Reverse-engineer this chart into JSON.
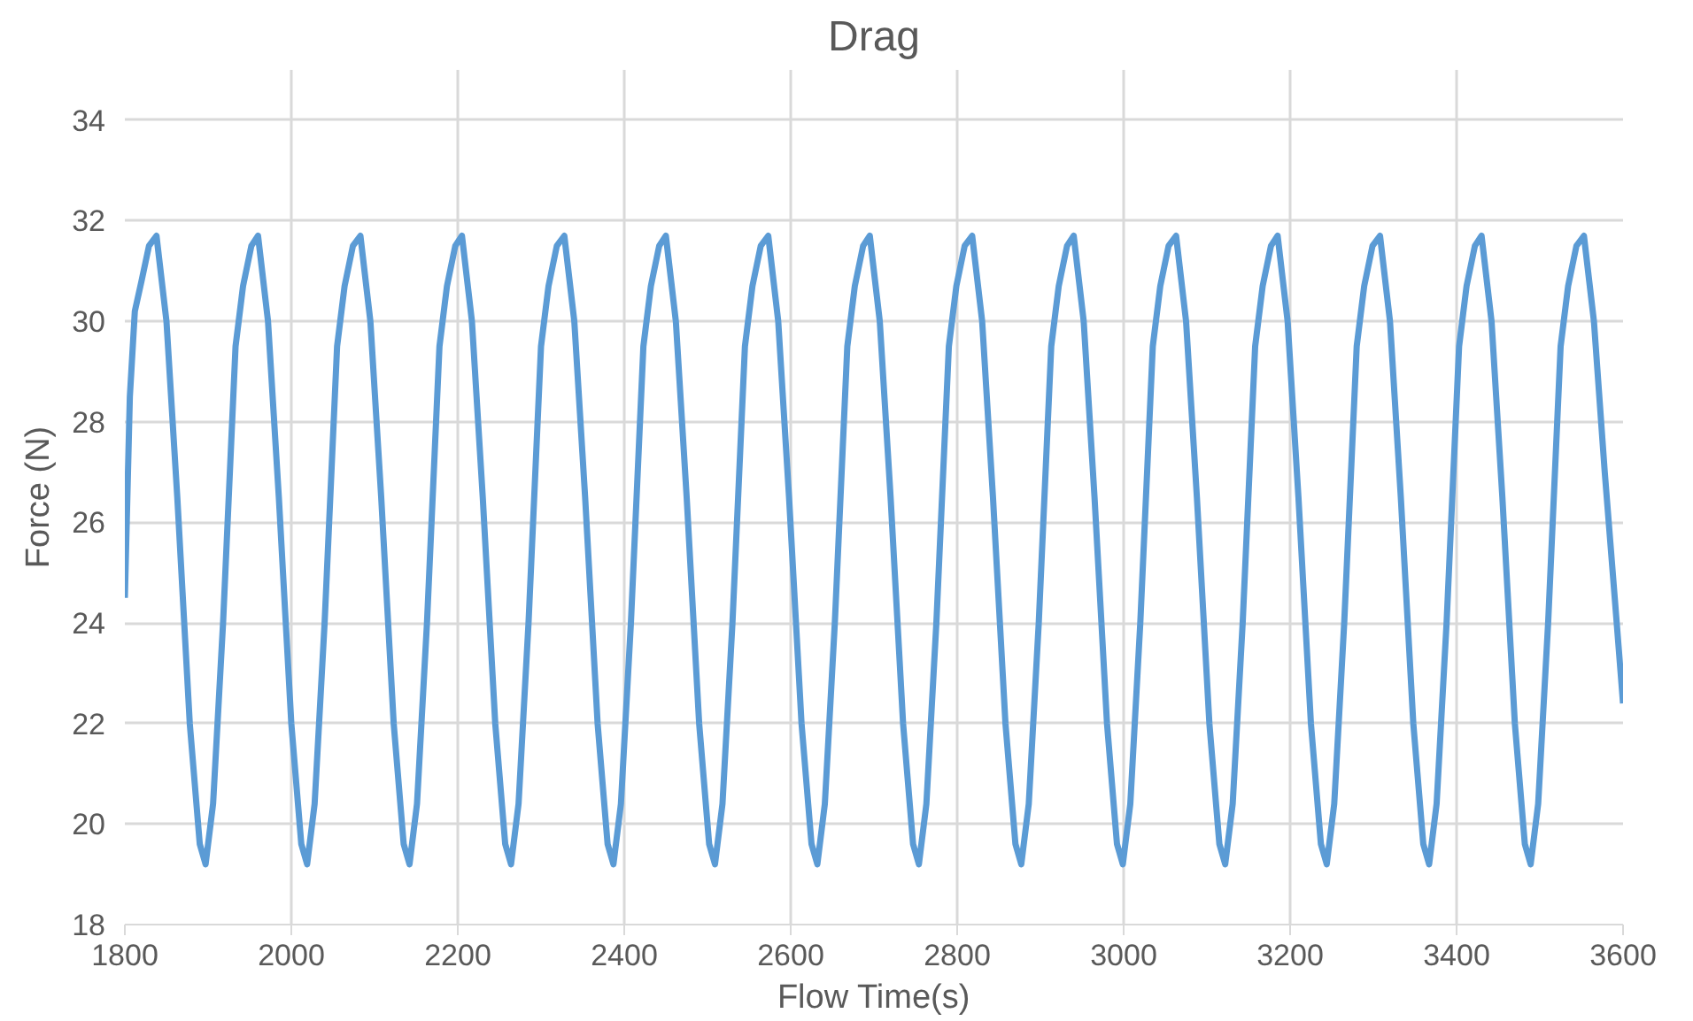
{
  "chart_data": {
    "type": "line",
    "title": "Drag",
    "xlabel": "Flow Time(s)",
    "ylabel": "Force (N)",
    "xlim": [
      1800,
      3600
    ],
    "xticks": [
      1800,
      2000,
      2200,
      2400,
      2600,
      2800,
      3000,
      3200,
      3400,
      3600
    ],
    "ylim": [
      18,
      35
    ],
    "yticks": [
      18,
      20,
      22,
      24,
      26,
      28,
      30,
      32,
      34
    ],
    "grid": true,
    "marker": "none",
    "line_style": "solid",
    "series": [
      {
        "color": "#5b9bd5",
        "x": [
          1800,
          1806,
          1812,
          1820,
          1829,
          1838,
          1850,
          1863,
          1878,
          1890,
          1897,
          1906,
          1918,
          1933,
          1942,
          1952,
          1960,
          1972,
          1985,
          2000,
          2012,
          2019,
          2028,
          2040,
          2055,
          2064,
          2074,
          2083,
          2095,
          2108,
          2123,
          2135,
          2142,
          2151,
          2163,
          2178,
          2187,
          2197,
          2205,
          2217,
          2230,
          2245,
          2257,
          2264,
          2273,
          2285,
          2300,
          2309,
          2319,
          2328,
          2340,
          2353,
          2368,
          2380,
          2387,
          2396,
          2408,
          2423,
          2432,
          2442,
          2450,
          2462,
          2475,
          2490,
          2502,
          2509,
          2518,
          2530,
          2545,
          2554,
          2564,
          2573,
          2585,
          2598,
          2613,
          2625,
          2632,
          2641,
          2653,
          2668,
          2677,
          2687,
          2695,
          2707,
          2720,
          2735,
          2747,
          2754,
          2763,
          2775,
          2790,
          2799,
          2809,
          2818,
          2830,
          2843,
          2858,
          2870,
          2877,
          2886,
          2898,
          2913,
          2922,
          2932,
          2940,
          2952,
          2965,
          2980,
          2992,
          2999,
          3008,
          3020,
          3035,
          3044,
          3054,
          3063,
          3075,
          3088,
          3103,
          3115,
          3122,
          3131,
          3143,
          3158,
          3167,
          3177,
          3185,
          3197,
          3210,
          3225,
          3237,
          3244,
          3253,
          3265,
          3280,
          3289,
          3299,
          3308,
          3320,
          3333,
          3348,
          3360,
          3367,
          3376,
          3388,
          3403,
          3412,
          3422,
          3430,
          3442,
          3455,
          3470,
          3482,
          3489,
          3498,
          3510,
          3525,
          3534,
          3544,
          3553,
          3565,
          3578,
          3590,
          3600
        ],
        "values": [
          24.5,
          28.5,
          30.2,
          30.8,
          31.5,
          31.7,
          30.0,
          26.5,
          22.0,
          19.6,
          19.2,
          20.4,
          24.0,
          29.5,
          30.7,
          31.5,
          31.7,
          30.0,
          26.5,
          22.0,
          19.6,
          19.2,
          20.4,
          24.0,
          29.5,
          30.7,
          31.5,
          31.7,
          30.0,
          26.5,
          22.0,
          19.6,
          19.2,
          20.4,
          24.0,
          29.5,
          30.7,
          31.5,
          31.7,
          30.0,
          26.5,
          22.0,
          19.6,
          19.2,
          20.4,
          24.0,
          29.5,
          30.7,
          31.5,
          31.7,
          30.0,
          26.5,
          22.0,
          19.6,
          19.2,
          20.4,
          24.0,
          29.5,
          30.7,
          31.5,
          31.7,
          30.0,
          26.5,
          22.0,
          19.6,
          19.2,
          20.4,
          24.0,
          29.5,
          30.7,
          31.5,
          31.7,
          30.0,
          26.5,
          22.0,
          19.6,
          19.2,
          20.4,
          24.0,
          29.5,
          30.7,
          31.5,
          31.7,
          30.0,
          26.5,
          22.0,
          19.6,
          19.2,
          20.4,
          24.0,
          29.5,
          30.7,
          31.5,
          31.7,
          30.0,
          26.5,
          22.0,
          19.6,
          19.2,
          20.4,
          24.0,
          29.5,
          30.7,
          31.5,
          31.7,
          30.0,
          26.5,
          22.0,
          19.6,
          19.2,
          20.4,
          24.0,
          29.5,
          30.7,
          31.5,
          31.7,
          30.0,
          26.5,
          22.0,
          19.6,
          19.2,
          20.4,
          24.0,
          29.5,
          30.7,
          31.5,
          31.7,
          30.0,
          26.5,
          22.0,
          19.6,
          19.2,
          20.4,
          24.0,
          29.5,
          30.7,
          31.5,
          31.7,
          30.0,
          26.5,
          22.0,
          19.6,
          19.2,
          20.4,
          24.0,
          29.5,
          30.7,
          31.5,
          31.7,
          30.0,
          26.5,
          22.0,
          19.6,
          19.2,
          20.4,
          24.0,
          29.5,
          30.7,
          31.5,
          31.7,
          30.0,
          27.0,
          24.5,
          22.4
        ]
      }
    ]
  }
}
